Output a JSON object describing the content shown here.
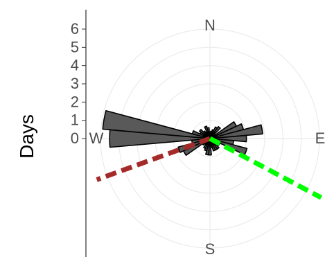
{
  "chart_data": {
    "type": "polar-bar",
    "ylabel": "Days",
    "y_ticks": [
      "0",
      "1",
      "2",
      "3",
      "4",
      "5",
      "6"
    ],
    "ylim": [
      0,
      6
    ],
    "directions": [
      "N",
      "E",
      "S",
      "W"
    ],
    "bar_width_deg": 10,
    "bars": [
      {
        "angle": 0,
        "value": 0.3
      },
      {
        "angle": 10,
        "value": 0.4
      },
      {
        "angle": 20,
        "value": 0.5
      },
      {
        "angle": 30,
        "value": 0.7
      },
      {
        "angle": 40,
        "value": 0.8
      },
      {
        "angle": 50,
        "value": 0.2
      },
      {
        "angle": 60,
        "value": 1.6
      },
      {
        "angle": 70,
        "value": 1.9
      },
      {
        "angle": 80,
        "value": 2.9
      },
      {
        "angle": 90,
        "value": 2.0
      },
      {
        "angle": 100,
        "value": 1.3
      },
      {
        "angle": 110,
        "value": 2.1
      },
      {
        "angle": 120,
        "value": 0.6
      },
      {
        "angle": 130,
        "value": 0.6
      },
      {
        "angle": 140,
        "value": 0.7
      },
      {
        "angle": 150,
        "value": 0.7
      },
      {
        "angle": 160,
        "value": 0.7
      },
      {
        "angle": 170,
        "value": 0.5
      },
      {
        "angle": 180,
        "value": 0.9
      },
      {
        "angle": 190,
        "value": 0.9
      },
      {
        "angle": 200,
        "value": 0.7
      },
      {
        "angle": 210,
        "value": 0.6
      },
      {
        "angle": 220,
        "value": 0.4
      },
      {
        "angle": 230,
        "value": 0.5
      },
      {
        "angle": 240,
        "value": 1.6
      },
      {
        "angle": 250,
        "value": 1.8
      },
      {
        "angle": 260,
        "value": 1.0
      },
      {
        "angle": 270,
        "value": 5.5
      },
      {
        "angle": 280,
        "value": 5.9
      },
      {
        "angle": 290,
        "value": 1.0
      },
      {
        "angle": 300,
        "value": 0.6
      },
      {
        "angle": 310,
        "value": 0.7
      },
      {
        "angle": 320,
        "value": 0.5
      },
      {
        "angle": 330,
        "value": 0.4
      },
      {
        "angle": 340,
        "value": 0.7
      },
      {
        "angle": 350,
        "value": 0.6
      }
    ],
    "dashed_lines": [
      {
        "angle": 250,
        "value": 6.6,
        "color": "#a52a2a"
      },
      {
        "angle": 118,
        "value": 6.9,
        "color": "#00ff00"
      }
    ],
    "grid": true,
    "bar_fill": "#595959",
    "bar_stroke": "#000000"
  }
}
